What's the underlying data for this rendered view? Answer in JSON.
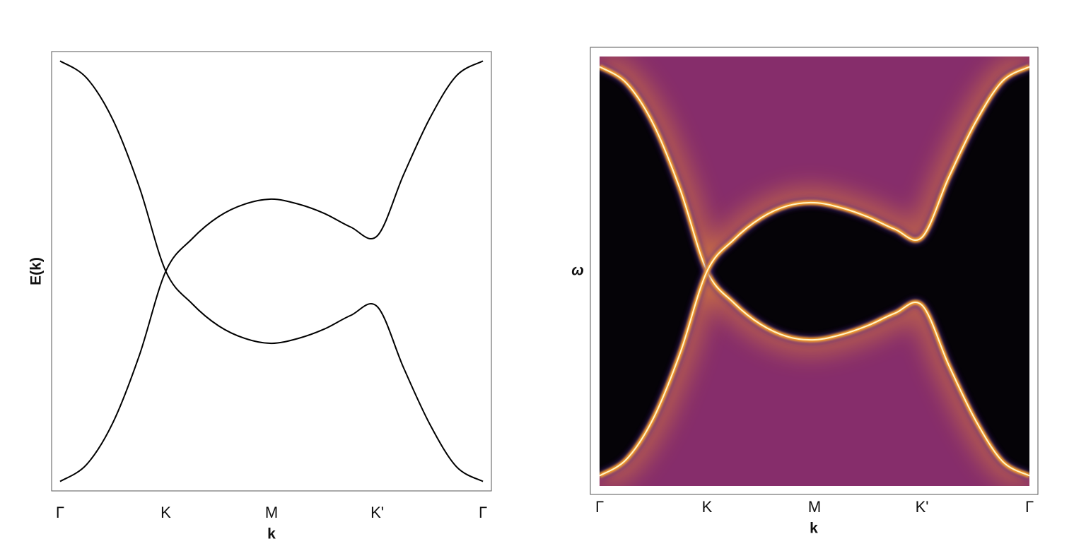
{
  "chart_data": [
    {
      "type": "line",
      "x": [
        0,
        0.25,
        0.5,
        0.75,
        1,
        1.25,
        1.5,
        1.75,
        2,
        2.25,
        2.5,
        2.75,
        3,
        3.25,
        3.5,
        3.75,
        4
      ],
      "series": [
        {
          "color": "#000000",
          "values": [
            1,
            0.92,
            0.72,
            0.4,
            0,
            -0.155,
            -0.26,
            -0.32,
            -0.343,
            -0.32,
            -0.275,
            -0.21,
            -0.168,
            -0.46,
            -0.73,
            -0.93,
            -1
          ]
        },
        {
          "color": "#000000",
          "values": [
            -1,
            -0.92,
            -0.72,
            -0.4,
            0,
            0.155,
            0.26,
            0.32,
            0.343,
            0.32,
            0.275,
            0.21,
            0.168,
            0.46,
            0.73,
            0.93,
            1
          ]
        }
      ],
      "xlim": [
        -0.08,
        4.08
      ],
      "ylim": [
        -1.045,
        1.045
      ],
      "xticks": [
        {
          "value": 0,
          "label": "Γ"
        },
        {
          "value": 1,
          "label": "K"
        },
        {
          "value": 2,
          "label": "M"
        },
        {
          "value": 3,
          "label": "K'"
        },
        {
          "value": 4,
          "label": "Γ"
        }
      ],
      "xlabel": "k",
      "ylabel": "E(k)"
    },
    {
      "type": "heatmap",
      "x": [
        0,
        0.25,
        0.5,
        0.75,
        1,
        1.25,
        1.5,
        1.75,
        2,
        2.25,
        2.5,
        2.75,
        3,
        3.25,
        3.5,
        3.75,
        4
      ],
      "series": [
        {
          "color": "#ffa326",
          "values": [
            1,
            0.92,
            0.72,
            0.4,
            0,
            -0.155,
            -0.26,
            -0.32,
            -0.335,
            -0.31,
            -0.265,
            -0.205,
            -0.166,
            -0.46,
            -0.73,
            -0.93,
            -1
          ]
        },
        {
          "color": "#ffa326",
          "values": [
            -1,
            -0.92,
            -0.72,
            -0.4,
            0,
            0.155,
            0.26,
            0.32,
            0.335,
            0.31,
            0.265,
            0.205,
            0.166,
            0.46,
            0.73,
            0.93,
            1
          ]
        }
      ],
      "background_color": "#862d6b",
      "gap_color": "#050307",
      "xlim": [
        0,
        4
      ],
      "ylim": [
        -1.05,
        1.05
      ],
      "xticks": [
        {
          "value": 0,
          "label": "Γ"
        },
        {
          "value": 1,
          "label": "K"
        },
        {
          "value": 2,
          "label": "M"
        },
        {
          "value": 3,
          "label": "K'"
        },
        {
          "value": 4,
          "label": "Γ"
        }
      ],
      "xlabel": "k",
      "ylabel": "ω"
    }
  ]
}
